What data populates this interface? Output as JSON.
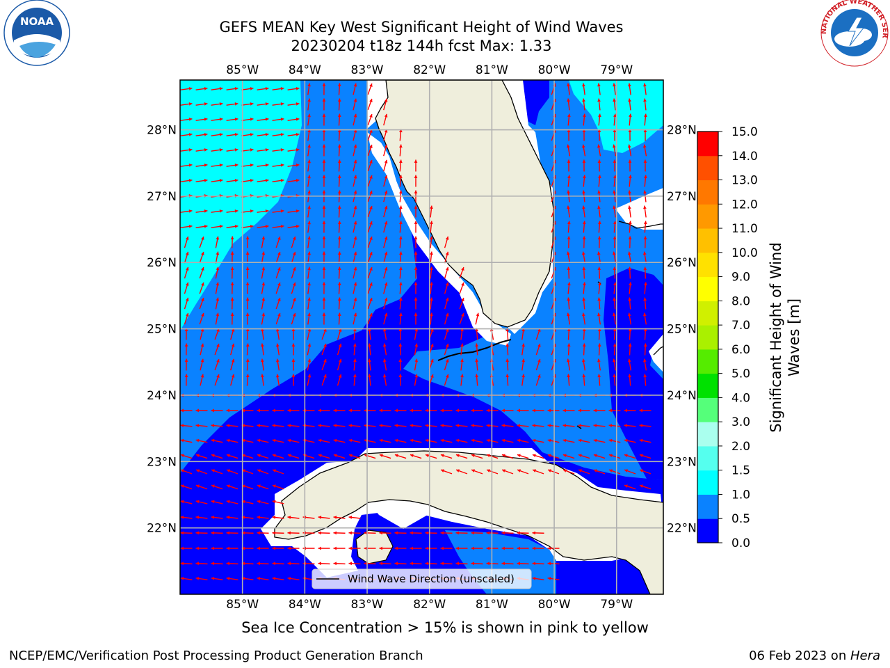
{
  "title": {
    "line1": "GEFS MEAN Key West Significant Height of Wind Waves",
    "line2": "20230204 t18z 144h fcst   Max: 1.33"
  },
  "logos": {
    "noaa": {
      "text": "NOAA",
      "ring_text": "NATIONAL OCEANIC AND ATMOSPHERIC ADMINISTRATION · U.S. DEPARTMENT OF COMMERCE",
      "color": "#1b5aa8"
    },
    "nws": {
      "ring_text": "NATIONAL WEATHER SERVICE",
      "color": "#d11f26"
    }
  },
  "map": {
    "lon_ticks": [
      "85°W",
      "84°W",
      "83°W",
      "82°W",
      "81°W",
      "80°W",
      "79°W"
    ],
    "lat_ticks": [
      "28°N",
      "27°N",
      "26°N",
      "25°N",
      "24°N",
      "23°N",
      "22°N"
    ],
    "lon_values": [
      -85,
      -84,
      -83,
      -82,
      -81,
      -80,
      -79
    ],
    "lat_values": [
      28,
      27,
      26,
      25,
      24,
      23,
      22
    ],
    "extent": {
      "lon_min": -86.0,
      "lon_max": -78.25,
      "lat_min": 21.0,
      "lat_max": 28.75
    },
    "land_color": "#efeedc",
    "arrow_color": "#ff0000",
    "legend_label": "Wind Wave Direction (unscaled)"
  },
  "colorbar": {
    "label": "Significant Height of Wind Waves [m]",
    "label_lines": [
      "Significant Height of Wind",
      "Waves [m]"
    ],
    "tick_labels": [
      "0.0",
      "0.5",
      "1.0",
      "1.5",
      "2.0",
      "3.0",
      "4.0",
      "5.0",
      "6.0",
      "7.0",
      "8.0",
      "9.0",
      "10.0",
      "11.0",
      "12.0",
      "13.0",
      "14.0",
      "15.0"
    ],
    "colors": [
      "#0000ff",
      "#0a82ff",
      "#00ffff",
      "#55ffee",
      "#aaffee",
      "#55ff7a",
      "#00e100",
      "#55ec00",
      "#aaf000",
      "#d0f000",
      "#ffff00",
      "#ffe100",
      "#ffc000",
      "#ff9900",
      "#ff7800",
      "#ff5000",
      "#ff0000"
    ]
  },
  "sea_ice_note": "Sea Ice Concentration > 15% is shown in pink to yellow",
  "footer": {
    "left": "NCEP/EMC/Verification Post Processing Product Generation Branch",
    "right_date": "06 Feb 2023 on ",
    "right_host": "Hera"
  }
}
